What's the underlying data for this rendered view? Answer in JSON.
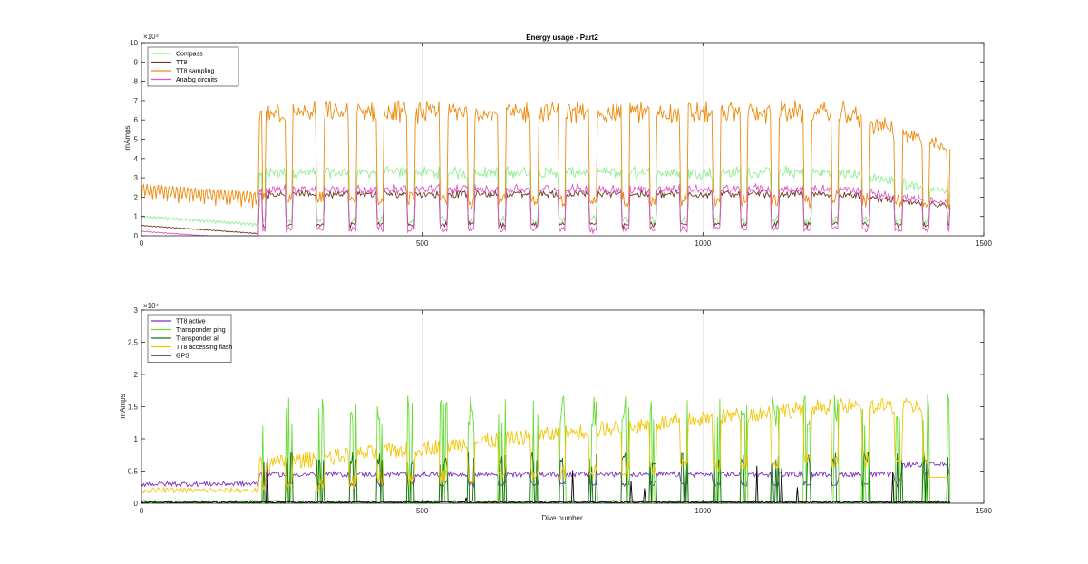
{
  "chart_data": [
    {
      "type": "line",
      "title": "Energy usage - Part2",
      "xlabel": "",
      "ylabel": "mAmps",
      "xlim": [
        0,
        1500
      ],
      "ylim": [
        0,
        100000
      ],
      "y_exponent_label": "×10⁴",
      "x_ticks": [
        "0",
        "500",
        "1000",
        "1500"
      ],
      "y_ticks": [
        "0",
        "1",
        "2",
        "3",
        "4",
        "5",
        "6",
        "7",
        "8",
        "9",
        "10"
      ],
      "grid": "x-only",
      "legend_position": "top-left",
      "series": [
        {
          "name": "Compass",
          "color": "#90ee90",
          "profile": {
            "pre_base": 9000,
            "pre_amp": 1500,
            "idle": 5000,
            "plateau": 35000,
            "end": 15000
          }
        },
        {
          "name": "TT8",
          "color": "#6b3a1f",
          "profile": {
            "pre_base": 5000,
            "pre_amp": 500,
            "idle": 4000,
            "plateau": 23000,
            "end": 4000
          }
        },
        {
          "name": "TT8 sampling",
          "color": "#ee8a0c",
          "profile": {
            "pre_base": 18000,
            "pre_amp": 9000,
            "idle": 13000,
            "plateau": 68000,
            "end": 10000
          }
        },
        {
          "name": "Analog circuits",
          "color": "#e055c8",
          "profile": {
            "pre_base": 2000,
            "pre_amp": 500,
            "idle": 1000,
            "plateau": 26000,
            "end": 2000
          }
        }
      ]
    },
    {
      "type": "line",
      "title": "",
      "xlabel": "Dive number",
      "ylabel": "mAmps",
      "xlim": [
        0,
        1500
      ],
      "ylim": [
        0,
        30000
      ],
      "y_exponent_label": "×10⁴",
      "x_ticks": [
        "0",
        "500",
        "1000",
        "1500"
      ],
      "y_ticks": [
        "0",
        "0.5",
        "1",
        "1.5",
        "2",
        "2.5",
        "3"
      ],
      "grid": "x-only",
      "legend_position": "top-left",
      "series": [
        {
          "name": "TT8 active",
          "color": "#7b2fbe",
          "profile": {
            "pre": 3000,
            "mid": 4500,
            "end": 6000
          }
        },
        {
          "name": "Transponder ping",
          "color": "#66dd33",
          "profile": {
            "spike_peak": 17000,
            "base": 500
          }
        },
        {
          "name": "Transponder all",
          "color": "#1a6e1a",
          "profile": {
            "spike_peak": 8000,
            "base": 300
          }
        },
        {
          "name": "TT8 accessing flash",
          "color": "#f5c400",
          "profile": {
            "pre": 2000,
            "mid_start": 6000,
            "mid_end": 15000,
            "end": 13000
          }
        },
        {
          "name": "GPS",
          "color": "#000000",
          "profile": {
            "base": 300,
            "spike": 7000
          }
        }
      ]
    }
  ]
}
